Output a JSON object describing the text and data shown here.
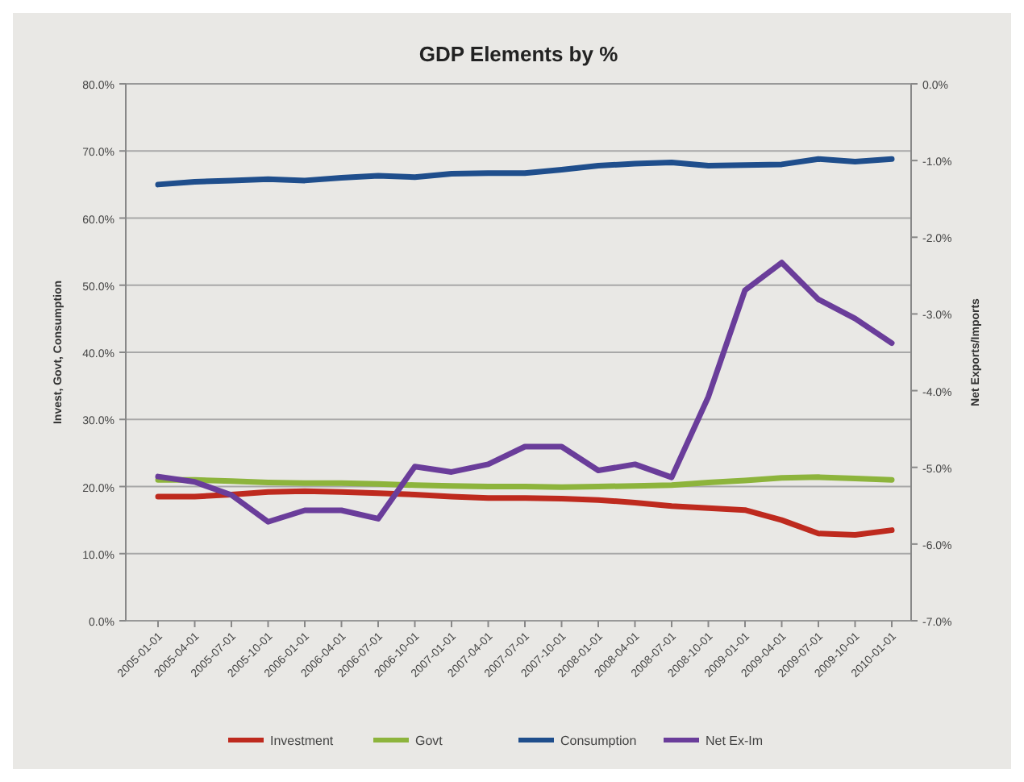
{
  "chart_data": {
    "type": "line",
    "title": "GDP Elements by %",
    "ylabel": "Invest, Govt, Consumption",
    "y2label": "Net Exports/Imports",
    "categories": [
      "2005-01-01",
      "2005-04-01",
      "2005-07-01",
      "2005-10-01",
      "2006-01-01",
      "2006-04-01",
      "2006-07-01",
      "2006-10-01",
      "2007-01-01",
      "2007-04-01",
      "2007-07-01",
      "2007-10-01",
      "2008-01-01",
      "2008-04-01",
      "2008-07-01",
      "2008-10-01",
      "2009-01-01",
      "2009-04-01",
      "2009-07-01",
      "2009-10-01",
      "2010-01-01"
    ],
    "series": [
      {
        "name": "Investment",
        "color": "#be2a1e",
        "values": [
          18.5,
          18.5,
          18.8,
          19.2,
          19.3,
          19.2,
          19.0,
          18.8,
          18.5,
          18.3,
          18.3,
          18.2,
          18.0,
          17.6,
          17.1,
          16.8,
          16.5,
          15.0,
          13.0,
          12.8,
          13.5
        ]
      },
      {
        "name": "Govt",
        "color": "#8db43c",
        "values": [
          21.0,
          21.0,
          20.8,
          20.6,
          20.5,
          20.5,
          20.4,
          20.2,
          20.1,
          20.0,
          20.0,
          19.9,
          20.0,
          20.1,
          20.2,
          20.6,
          20.9,
          21.3,
          21.4,
          21.2,
          21.0
        ]
      },
      {
        "name": "Consumption",
        "color": "#1f4e8c",
        "values": [
          65.0,
          65.4,
          65.6,
          65.8,
          65.6,
          66.0,
          66.3,
          66.1,
          66.6,
          66.7,
          66.7,
          67.2,
          67.8,
          68.1,
          68.3,
          67.8,
          67.9,
          68.0,
          68.8,
          68.4,
          68.8
        ]
      },
      {
        "name": "Net Ex-Im",
        "color": "#6a3d9a",
        "axis": "y2",
        "values": [
          -5.12,
          -5.19,
          -5.36,
          -5.71,
          -5.56,
          -5.56,
          -5.67,
          -4.99,
          -5.06,
          -4.96,
          -4.73,
          -4.73,
          -5.04,
          -4.96,
          -5.13,
          -4.08,
          -2.69,
          -2.33,
          -2.81,
          -3.06,
          -3.38
        ]
      }
    ],
    "ylim": [
      0,
      80
    ],
    "yticks": [
      {
        "value": 0,
        "label": "0.0%"
      },
      {
        "value": 10,
        "label": "10.0%"
      },
      {
        "value": 20,
        "label": "20.0%"
      },
      {
        "value": 30,
        "label": "30.0%"
      },
      {
        "value": 40,
        "label": "40.0%"
      },
      {
        "value": 50,
        "label": "50.0%"
      },
      {
        "value": 60,
        "label": "60.0%"
      },
      {
        "value": 70,
        "label": "70.0%"
      },
      {
        "value": 80,
        "label": "80.0%"
      }
    ],
    "y2lim": [
      -7,
      0
    ],
    "y2ticks": [
      {
        "value": 0,
        "label": "0.0%"
      },
      {
        "value": -1,
        "label": "-1.0%"
      },
      {
        "value": -2,
        "label": "-2.0%"
      },
      {
        "value": -3,
        "label": "-3.0%"
      },
      {
        "value": -4,
        "label": "-4.0%"
      },
      {
        "value": -5,
        "label": "-5.0%"
      },
      {
        "value": -6,
        "label": "-6.0%"
      },
      {
        "value": -7,
        "label": "-7.0%"
      }
    ],
    "grid": "y",
    "legend": "bottom",
    "marker": "none",
    "line_style": "solid"
  }
}
